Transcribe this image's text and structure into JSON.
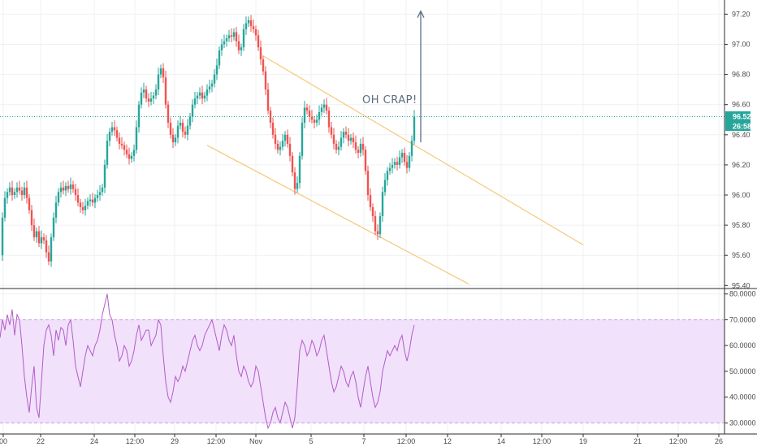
{
  "chart_data": [
    {
      "type": "candlestick",
      "ylim": [
        95.38,
        97.24
      ],
      "price_axis_ticks": [
        "97.20",
        "97.00",
        "96.80",
        "96.60",
        "96.40",
        "96.20",
        "96.00",
        "95.80",
        "95.60",
        "95.40"
      ],
      "time_axis_ticks": [
        "00",
        "22",
        "24",
        "12:00",
        "29",
        "12:00",
        "Nov",
        "5",
        "7",
        "12:00",
        "12",
        "14",
        "12:00",
        "19",
        "21",
        "12:00",
        "26"
      ],
      "current_price": "96.52",
      "countdown": "26:58",
      "annotation": "OH CRAP!",
      "colors": {
        "up": "#26a69a",
        "down": "#ef5350",
        "channel": "#f7c77a",
        "arrow": "#5b6f8a",
        "price_line": "#26a69a"
      },
      "channel_lines": [
        {
          "x": [
            "Oct 31",
            "Nov 19"
          ],
          "y": [
            96.92,
            95.67
          ]
        },
        {
          "x": [
            "Oct 29",
            "Nov 12"
          ],
          "y": [
            96.33,
            95.41
          ]
        }
      ],
      "arrow": {
        "x": "Nov 9",
        "from": 96.35,
        "to": 97.22
      },
      "candles_close_path": [
        [
          0,
          95.6
        ],
        [
          3,
          95.85
        ],
        [
          6,
          95.98
        ],
        [
          9,
          96.02
        ],
        [
          12,
          96.05
        ],
        [
          15,
          96.0
        ],
        [
          18,
          96.02
        ],
        [
          21,
          96.05
        ],
        [
          24,
          96.03
        ],
        [
          27,
          96.0
        ],
        [
          30,
          96.05
        ],
        [
          33,
          95.98
        ],
        [
          36,
          95.9
        ],
        [
          39,
          95.8
        ],
        [
          42,
          95.72
        ],
        [
          45,
          95.76
        ],
        [
          48,
          95.68
        ],
        [
          51,
          95.72
        ],
        [
          54,
          95.7
        ],
        [
          57,
          95.62
        ],
        [
          60,
          95.56
        ],
        [
          63,
          95.72
        ],
        [
          66,
          95.85
        ],
        [
          69,
          95.95
        ],
        [
          72,
          96.02
        ],
        [
          75,
          96.05
        ],
        [
          78,
          96.03
        ],
        [
          81,
          96.06
        ],
        [
          84,
          96.04
        ],
        [
          87,
          96.07
        ],
        [
          90,
          96.04
        ],
        [
          93,
          96.0
        ],
        [
          96,
          95.95
        ],
        [
          99,
          95.92
        ],
        [
          102,
          95.9
        ],
        [
          105,
          95.93
        ],
        [
          108,
          95.96
        ],
        [
          111,
          95.97
        ],
        [
          114,
          95.95
        ],
        [
          117,
          95.98
        ],
        [
          120,
          96.0
        ],
        [
          123,
          96.02
        ],
        [
          126,
          96.05
        ],
        [
          129,
          96.2
        ],
        [
          132,
          96.36
        ],
        [
          135,
          96.42
        ],
        [
          138,
          96.45
        ],
        [
          141,
          96.43
        ],
        [
          144,
          96.38
        ],
        [
          147,
          96.34
        ],
        [
          150,
          96.33
        ],
        [
          153,
          96.3
        ],
        [
          156,
          96.27
        ],
        [
          159,
          96.24
        ],
        [
          162,
          96.26
        ],
        [
          165,
          96.3
        ],
        [
          168,
          96.45
        ],
        [
          171,
          96.6
        ],
        [
          174,
          96.68
        ],
        [
          177,
          96.7
        ],
        [
          180,
          96.64
        ],
        [
          183,
          96.62
        ],
        [
          186,
          96.64
        ],
        [
          189,
          96.66
        ],
        [
          192,
          96.7
        ],
        [
          195,
          96.8
        ],
        [
          198,
          96.84
        ],
        [
          201,
          96.78
        ],
        [
          204,
          96.6
        ],
        [
          207,
          96.48
        ],
        [
          210,
          96.4
        ],
        [
          213,
          96.35
        ],
        [
          216,
          96.38
        ],
        [
          219,
          96.46
        ],
        [
          222,
          96.48
        ],
        [
          225,
          96.42
        ],
        [
          228,
          96.4
        ],
        [
          231,
          96.46
        ],
        [
          234,
          96.52
        ],
        [
          237,
          96.6
        ],
        [
          240,
          96.64
        ],
        [
          243,
          96.66
        ],
        [
          246,
          96.68
        ],
        [
          249,
          96.64
        ],
        [
          252,
          96.66
        ],
        [
          255,
          96.7
        ],
        [
          258,
          96.72
        ],
        [
          261,
          96.74
        ],
        [
          264,
          96.8
        ],
        [
          267,
          96.86
        ],
        [
          270,
          96.96
        ],
        [
          273,
          97.0
        ],
        [
          276,
          97.02
        ],
        [
          279,
          97.04
        ],
        [
          282,
          97.06
        ],
        [
          285,
          97.05
        ],
        [
          288,
          97.08
        ],
        [
          291,
          97.02
        ],
        [
          294,
          96.96
        ],
        [
          297,
          96.98
        ],
        [
          300,
          97.1
        ],
        [
          303,
          97.14
        ],
        [
          306,
          97.16
        ],
        [
          309,
          97.12
        ],
        [
          312,
          97.1
        ],
        [
          315,
          97.06
        ],
        [
          318,
          96.98
        ],
        [
          321,
          96.9
        ],
        [
          324,
          96.82
        ],
        [
          327,
          96.7
        ],
        [
          330,
          96.56
        ],
        [
          333,
          96.48
        ],
        [
          336,
          96.4
        ],
        [
          339,
          96.34
        ],
        [
          342,
          96.3
        ],
        [
          345,
          96.32
        ],
        [
          348,
          96.36
        ],
        [
          351,
          96.4
        ],
        [
          354,
          96.34
        ],
        [
          357,
          96.26
        ],
        [
          360,
          96.15
        ],
        [
          363,
          96.04
        ],
        [
          366,
          96.08
        ],
        [
          369,
          96.26
        ],
        [
          372,
          96.48
        ],
        [
          375,
          96.58
        ],
        [
          378,
          96.56
        ],
        [
          381,
          96.52
        ],
        [
          384,
          96.5
        ],
        [
          387,
          96.48
        ],
        [
          390,
          96.5
        ],
        [
          393,
          96.55
        ],
        [
          396,
          96.58
        ],
        [
          399,
          96.6
        ],
        [
          402,
          96.56
        ],
        [
          405,
          96.45
        ],
        [
          408,
          96.4
        ],
        [
          411,
          96.34
        ],
        [
          414,
          96.3
        ],
        [
          417,
          96.32
        ],
        [
          420,
          96.38
        ],
        [
          423,
          96.42
        ],
        [
          426,
          96.4
        ],
        [
          429,
          96.36
        ],
        [
          432,
          96.38
        ],
        [
          435,
          96.35
        ],
        [
          438,
          96.3
        ],
        [
          441,
          96.28
        ],
        [
          444,
          96.34
        ],
        [
          447,
          96.3
        ],
        [
          450,
          96.16
        ],
        [
          453,
          96.0
        ],
        [
          456,
          95.92
        ],
        [
          459,
          95.86
        ],
        [
          462,
          95.76
        ],
        [
          465,
          95.74
        ],
        [
          468,
          95.86
        ],
        [
          471,
          96.02
        ],
        [
          474,
          96.1
        ],
        [
          477,
          96.16
        ],
        [
          480,
          96.18
        ],
        [
          483,
          96.2
        ],
        [
          486,
          96.22
        ],
        [
          489,
          96.2
        ],
        [
          492,
          96.25
        ],
        [
          495,
          96.28
        ],
        [
          498,
          96.22
        ],
        [
          501,
          96.18
        ],
        [
          504,
          96.26
        ],
        [
          507,
          96.36
        ],
        [
          510,
          96.52
        ]
      ]
    },
    {
      "type": "line",
      "ylim": [
        26.0,
        81.8
      ],
      "axis_ticks": [
        "80.0000",
        "70.0000",
        "60.0000",
        "50.0000",
        "40.0000",
        "30.0000"
      ],
      "band": [
        30,
        70
      ],
      "colors": {
        "line": "#b45bc9",
        "band_fill": "#f1e1fb",
        "band_border": "#c99be0"
      },
      "x": [
        0,
        3,
        6,
        9,
        12,
        15,
        18,
        21,
        24,
        27,
        30,
        33,
        36,
        39,
        42,
        45,
        48,
        51,
        54,
        57,
        60,
        63,
        66,
        69,
        72,
        75,
        78,
        81,
        84,
        87,
        90,
        93,
        96,
        99,
        102,
        105,
        108,
        111,
        114,
        117,
        120,
        123,
        126,
        129,
        132,
        135,
        138,
        141,
        144,
        147,
        150,
        153,
        156,
        159,
        162,
        165,
        168,
        171,
        174,
        177,
        180,
        183,
        186,
        189,
        192,
        195,
        198,
        201,
        204,
        207,
        210,
        213,
        216,
        219,
        222,
        225,
        228,
        231,
        234,
        237,
        240,
        243,
        246,
        249,
        252,
        255,
        258,
        261,
        264,
        267,
        270,
        273,
        276,
        279,
        282,
        285,
        288,
        291,
        294,
        297,
        300,
        303,
        306,
        309,
        312,
        315,
        318,
        321,
        324,
        327,
        330,
        333,
        336,
        339,
        342,
        345,
        348,
        351,
        354,
        357,
        360,
        363,
        366,
        369,
        372,
        375,
        378,
        381,
        384,
        387,
        390,
        393,
        396,
        399,
        402,
        405,
        408,
        411,
        414,
        417,
        420,
        423,
        426,
        429,
        432,
        435,
        438,
        441,
        444,
        447,
        450,
        453,
        456,
        459,
        462,
        465,
        468,
        471,
        474,
        477,
        480,
        483,
        486,
        489,
        492,
        495,
        498,
        501,
        504,
        507,
        510
      ],
      "values": [
        63,
        70,
        66,
        72,
        68,
        74,
        64,
        72,
        70,
        60,
        48,
        40,
        34,
        44,
        52,
        36,
        32,
        46,
        60,
        66,
        68,
        64,
        56,
        66,
        62,
        67,
        66,
        60,
        68,
        70,
        62,
        52,
        48,
        44,
        50,
        56,
        60,
        58,
        56,
        60,
        62,
        66,
        72,
        76,
        80,
        72,
        70,
        64,
        60,
        54,
        56,
        60,
        58,
        52,
        54,
        58,
        64,
        68,
        62,
        64,
        66,
        66,
        60,
        62,
        64,
        70,
        68,
        56,
        46,
        40,
        38,
        42,
        48,
        46,
        48,
        52,
        50,
        54,
        58,
        62,
        64,
        60,
        58,
        60,
        64,
        66,
        68,
        70,
        66,
        62,
        58,
        64,
        68,
        66,
        62,
        60,
        64,
        56,
        50,
        48,
        52,
        50,
        46,
        44,
        46,
        52,
        50,
        44,
        38,
        32,
        28,
        30,
        34,
        36,
        32,
        30,
        34,
        38,
        36,
        32,
        28,
        32,
        44,
        58,
        62,
        60,
        56,
        58,
        62,
        60,
        56,
        58,
        62,
        64,
        58,
        52,
        46,
        42,
        44,
        48,
        52,
        50,
        46,
        44,
        48,
        50,
        46,
        40,
        36,
        42,
        48,
        52,
        46,
        40,
        36,
        38,
        42,
        50,
        54,
        58,
        56,
        58,
        60,
        58,
        62,
        64,
        58,
        54,
        58,
        64,
        68
      ]
    }
  ]
}
